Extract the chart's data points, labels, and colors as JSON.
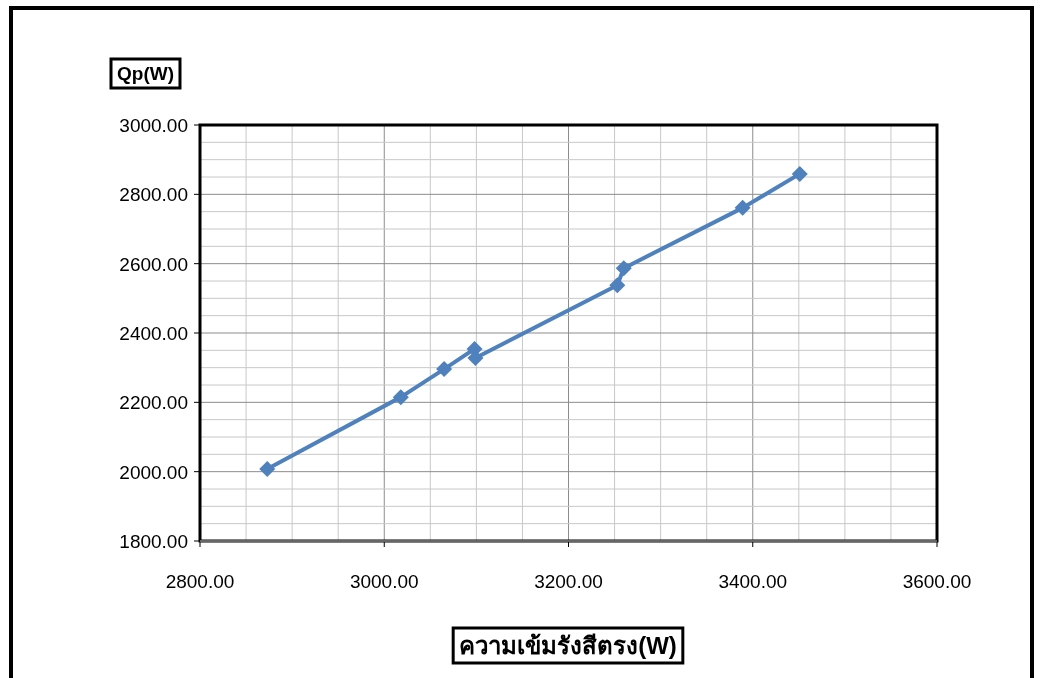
{
  "chart_data": {
    "type": "line",
    "xlabel": "ความเข้มรังสีตรง(W)",
    "ylabel": "Qp(W)",
    "x": [
      2873,
      3018,
      3065,
      3098,
      3099,
      3253,
      3260,
      3389,
      3451
    ],
    "series": [
      {
        "color": "#4f81bd",
        "values": [
          2008,
          2215,
          2296,
          2354,
          2328,
          2538,
          2587,
          2761,
          2859
        ]
      }
    ],
    "xlim": [
      2800,
      3600
    ],
    "xticks": [
      {
        "value": 2800,
        "label": "2800.00"
      },
      {
        "value": 2850,
        "label": null
      },
      {
        "value": 2900,
        "label": null
      },
      {
        "value": 2950,
        "label": null
      },
      {
        "value": 3000,
        "label": "3000.00"
      },
      {
        "value": 3050,
        "label": null
      },
      {
        "value": 3100,
        "label": null
      },
      {
        "value": 3150,
        "label": null
      },
      {
        "value": 3200,
        "label": "3200.00"
      },
      {
        "value": 3250,
        "label": null
      },
      {
        "value": 3300,
        "label": null
      },
      {
        "value": 3350,
        "label": null
      },
      {
        "value": 3400,
        "label": "3400.00"
      },
      {
        "value": 3450,
        "label": null
      },
      {
        "value": 3500,
        "label": null
      },
      {
        "value": 3550,
        "label": null
      },
      {
        "value": 3600,
        "label": "3600.00"
      }
    ],
    "ylim": [
      1800,
      3000
    ],
    "yticks": [
      {
        "value": 1800,
        "label": "1800.00"
      },
      {
        "value": 1850,
        "label": null
      },
      {
        "value": 1900,
        "label": null
      },
      {
        "value": 1950,
        "label": null
      },
      {
        "value": 2000,
        "label": "2000.00"
      },
      {
        "value": 2050,
        "label": null
      },
      {
        "value": 2100,
        "label": null
      },
      {
        "value": 2150,
        "label": null
      },
      {
        "value": 2200,
        "label": "2200.00"
      },
      {
        "value": 2250,
        "label": null
      },
      {
        "value": 2300,
        "label": null
      },
      {
        "value": 2350,
        "label": null
      },
      {
        "value": 2400,
        "label": "2400.00"
      },
      {
        "value": 2450,
        "label": null
      },
      {
        "value": 2500,
        "label": null
      },
      {
        "value": 2550,
        "label": null
      },
      {
        "value": 2600,
        "label": "2600.00"
      },
      {
        "value": 2650,
        "label": null
      },
      {
        "value": 2700,
        "label": null
      },
      {
        "value": 2750,
        "label": null
      },
      {
        "value": 2800,
        "label": "2800.00"
      },
      {
        "value": 2850,
        "label": null
      },
      {
        "value": 2900,
        "label": null
      },
      {
        "value": 2950,
        "label": null
      },
      {
        "value": 3000,
        "label": "3000.00"
      }
    ],
    "grid": true,
    "marker": "diamond",
    "line_style": "solid"
  }
}
